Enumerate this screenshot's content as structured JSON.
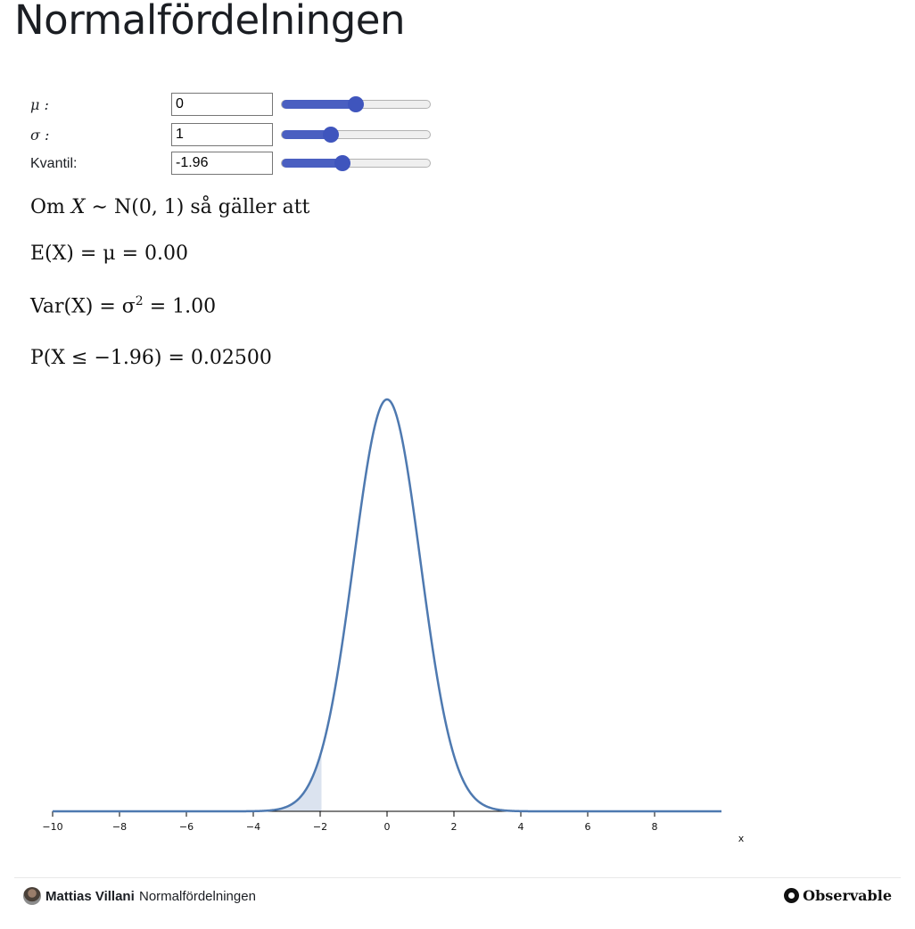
{
  "page": {
    "title": "Normalfördelningen"
  },
  "controls": [
    {
      "label": "μ :",
      "value": "0",
      "slider_fraction": 0.5
    },
    {
      "label": "σ :",
      "value": "1",
      "slider_fraction": 0.33
    },
    {
      "label": "Kvantil:",
      "value": "-1.96",
      "slider_fraction": 0.41
    }
  ],
  "text": {
    "intro_prefix": "Om ",
    "intro_var": "X",
    "intro_mid": " ∼ N(0, 1) ",
    "intro_suffix": "så gäller att",
    "expectation": "E(X) = μ = 0.00",
    "variance_lhs": "Var(X) = σ",
    "variance_exp": "2",
    "variance_rhs": " = 1.00",
    "probability": "P(X ≤ −1.96) = 0.02500"
  },
  "chart_data": {
    "type": "area",
    "xlabel": "x",
    "xlim": [
      -10,
      10
    ],
    "x_ticks": [
      -10,
      -8,
      -6,
      -4,
      -2,
      0,
      2,
      4,
      6,
      8
    ],
    "x_tick_labels": [
      "−10",
      "−8",
      "−6",
      "−4",
      "−2",
      "0",
      "2",
      "4",
      "6",
      "8"
    ],
    "mu": 0,
    "sigma": 1,
    "quantile": -1.96,
    "series": [
      {
        "values_function": "normal_pdf(mu, sigma)",
        "color": "#4e79b0"
      }
    ],
    "shaded_region": {
      "from": -10,
      "to": -1.96,
      "color": "#dbe3ef"
    }
  },
  "footer": {
    "author": "Mattias Villani",
    "notebook": "Normalfördelningen",
    "brand": "Observable"
  }
}
